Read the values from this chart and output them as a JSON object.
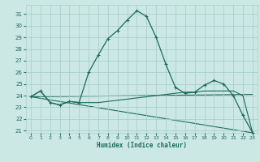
{
  "xlabel": "Humidex (Indice chaleur)",
  "bg_color": "#cce8e4",
  "grid_color": "#aacfcb",
  "line_color": "#1a6b5a",
  "xlim": [
    -0.5,
    23.5
  ],
  "ylim": [
    20.8,
    31.8
  ],
  "yticks": [
    21,
    22,
    23,
    24,
    25,
    26,
    27,
    28,
    29,
    30,
    31
  ],
  "xticks": [
    0,
    1,
    2,
    3,
    4,
    5,
    6,
    7,
    8,
    9,
    10,
    11,
    12,
    13,
    14,
    15,
    16,
    17,
    18,
    19,
    20,
    21,
    22,
    23
  ],
  "series1_x": [
    0,
    1,
    2,
    3,
    4,
    5,
    6,
    7,
    8,
    9,
    10,
    11,
    12,
    13,
    14,
    15,
    16,
    17,
    18,
    19,
    20,
    21,
    22,
    23
  ],
  "series1_y": [
    23.9,
    24.4,
    23.4,
    23.2,
    23.5,
    23.4,
    26.0,
    27.5,
    28.9,
    29.6,
    30.5,
    31.3,
    30.8,
    29.0,
    26.7,
    24.7,
    24.2,
    24.3,
    24.9,
    25.3,
    25.0,
    24.0,
    22.3,
    20.8
  ],
  "series2_x": [
    0,
    1,
    2,
    3,
    4,
    5,
    6,
    7,
    8,
    9,
    10,
    11,
    12,
    13,
    14,
    15,
    16,
    17,
    18,
    19,
    20,
    21,
    22,
    23
  ],
  "series2_y": [
    23.9,
    24.4,
    23.4,
    23.2,
    23.5,
    23.4,
    23.4,
    23.4,
    23.5,
    23.6,
    23.7,
    23.8,
    23.9,
    24.0,
    24.1,
    24.2,
    24.3,
    24.3,
    24.4,
    24.4,
    24.4,
    24.4,
    24.0,
    20.8
  ],
  "series3_x": [
    0,
    23
  ],
  "series3_y": [
    23.9,
    20.8
  ],
  "series4_x": [
    0,
    23
  ],
  "series4_y": [
    23.9,
    24.1
  ]
}
